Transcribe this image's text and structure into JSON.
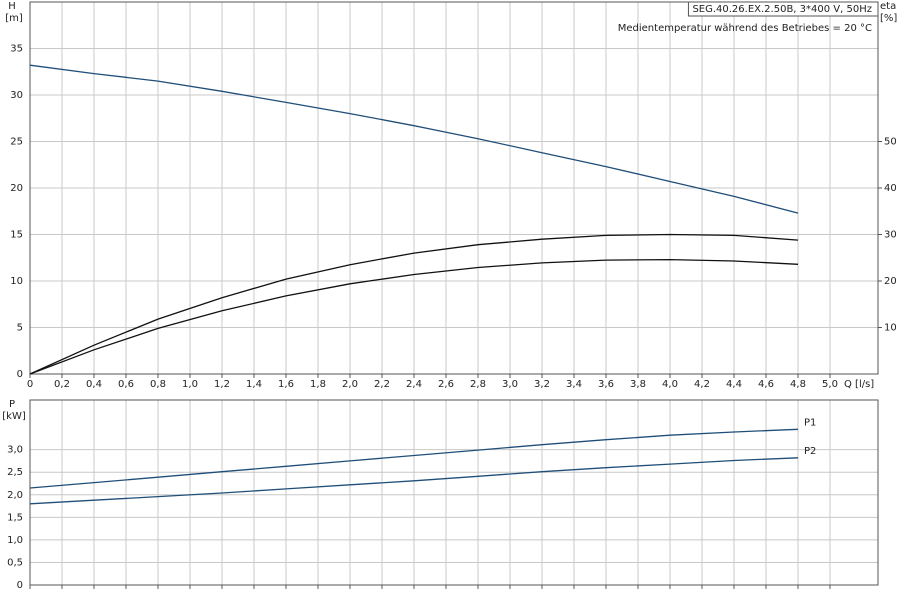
{
  "chart_data": [
    {
      "type": "line",
      "annotations": [
        "SEG.40.26.EX.2.50B, 3*400 V, 50Hz",
        "Medientemperatur während des Betriebes = 20 °C"
      ],
      "ylabel": "H",
      "yunit": "[m]",
      "y2label": "eta",
      "y2unit": "[%]",
      "xlabel": "Q [l/s]",
      "x": [
        0,
        0.4,
        0.8,
        1.2,
        1.6,
        2.0,
        2.4,
        2.8,
        3.2,
        3.6,
        4.0,
        4.4,
        4.8
      ],
      "series": [
        {
          "color": "#1f4e79",
          "values": [
            33.2,
            32.3,
            31.5,
            30.4,
            29.2,
            28.0,
            26.7,
            25.3,
            23.8,
            22.3,
            20.7,
            19.1,
            17.3
          ]
        },
        {
          "color": "#111111",
          "axis": "y2",
          "values": [
            0,
            6.2,
            11.8,
            16.4,
            20.4,
            23.5,
            26,
            27.8,
            29,
            29.8,
            30,
            29.8,
            28.8
          ]
        },
        {
          "color": "#111111",
          "axis": "y2",
          "values": [
            0,
            5.2,
            9.8,
            13.6,
            16.8,
            19.4,
            21.4,
            22.9,
            23.9,
            24.5,
            24.6,
            24.3,
            23.6
          ]
        }
      ],
      "xlim": [
        0,
        5.3
      ],
      "xticks": [
        0,
        {
          "value": 0.2,
          "label": "0,2"
        },
        {
          "value": 0.4,
          "label": "0,4"
        },
        {
          "value": 0.6,
          "label": "0,6"
        },
        {
          "value": 0.8,
          "label": "0,8"
        },
        {
          "value": 1.0,
          "label": "1,0"
        },
        {
          "value": 1.2,
          "label": "1,2"
        },
        {
          "value": 1.4,
          "label": "1,4"
        },
        {
          "value": 1.6,
          "label": "1,6"
        },
        {
          "value": 1.8,
          "label": "1,8"
        },
        {
          "value": 2.0,
          "label": "2,0"
        },
        {
          "value": 2.2,
          "label": "2,2"
        },
        {
          "value": 2.4,
          "label": "2,4"
        },
        {
          "value": 2.6,
          "label": "2,6"
        },
        {
          "value": 2.8,
          "label": "2,8"
        },
        {
          "value": 3.0,
          "label": "3,0"
        },
        {
          "value": 3.2,
          "label": "3,2"
        },
        {
          "value": 3.4,
          "label": "3,4"
        },
        {
          "value": 3.6,
          "label": "3,6"
        },
        {
          "value": 3.8,
          "label": "3,8"
        },
        {
          "value": 4.0,
          "label": "4,0"
        },
        {
          "value": 4.2,
          "label": "4,2"
        },
        {
          "value": 4.4,
          "label": "4,4"
        },
        {
          "value": 4.6,
          "label": "4,6"
        },
        {
          "value": 4.8,
          "label": "4,8"
        },
        {
          "value": 5.0,
          "label": "5,0"
        }
      ],
      "ylim": [
        0,
        40
      ],
      "yticks": [
        0,
        5,
        10,
        15,
        20,
        25,
        30,
        35
      ],
      "y2lim": [
        0,
        80
      ],
      "y2ticks": [
        10,
        20,
        30,
        40,
        50
      ],
      "grid": true
    },
    {
      "type": "line",
      "ylabel": "P",
      "yunit": "[kW]",
      "x": [
        0,
        0.4,
        0.8,
        1.2,
        1.6,
        2.0,
        2.4,
        2.8,
        3.2,
        3.6,
        4.0,
        4.4,
        4.8
      ],
      "series": [
        {
          "name": "P1",
          "color": "#1f4e79",
          "values": [
            2.15,
            2.27,
            2.39,
            2.51,
            2.63,
            2.75,
            2.87,
            2.99,
            3.11,
            3.22,
            3.32,
            3.39,
            3.45
          ]
        },
        {
          "name": "P2",
          "color": "#1f4e79",
          "values": [
            1.8,
            1.88,
            1.96,
            2.04,
            2.13,
            2.22,
            2.31,
            2.41,
            2.51,
            2.6,
            2.68,
            2.76,
            2.82
          ]
        }
      ],
      "xlim": [
        0,
        5.3
      ],
      "ylim": [
        0,
        4.1
      ],
      "yticks": [
        0,
        {
          "value": 0.5,
          "label": "0,5"
        },
        {
          "value": 1.0,
          "label": "1,0"
        },
        {
          "value": 1.5,
          "label": "1,5"
        },
        {
          "value": 2.0,
          "label": "2,0"
        },
        {
          "value": 2.5,
          "label": "2,5"
        },
        {
          "value": 3.0,
          "label": "3,0"
        }
      ],
      "grid": true
    }
  ]
}
